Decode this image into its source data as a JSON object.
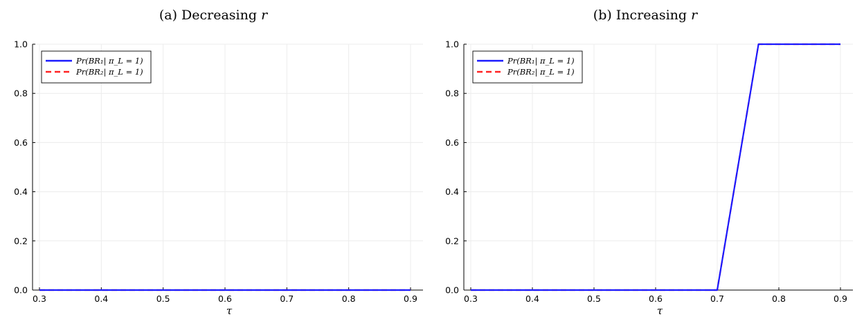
{
  "chart_data": [
    {
      "type": "line",
      "title_prefix": "(a) Decreasing ",
      "title_var": "r",
      "xlabel": "τ",
      "ylabel": "",
      "xlim": [
        0.3,
        0.9
      ],
      "ylim": [
        0.0,
        1.0
      ],
      "xticks": [
        "0.3",
        "0.4",
        "0.5",
        "0.6",
        "0.7",
        "0.8",
        "0.9"
      ],
      "yticks": [
        "0.0",
        "0.2",
        "0.4",
        "0.6",
        "0.8",
        "1.0"
      ],
      "grid": true,
      "legend_position": "top-left",
      "series": [
        {
          "name": "Pr(BR₁| π_L = 1)",
          "color": "#1a1aff",
          "dash": "solid",
          "x": [
            0.3,
            0.9
          ],
          "y": [
            0.0,
            0.0
          ]
        },
        {
          "name": "Pr(BR₂| π_L = 1)",
          "color": "#ff2222",
          "dash": "dashed",
          "x": [
            0.3,
            0.9
          ],
          "y": [
            0.0,
            0.0
          ]
        }
      ]
    },
    {
      "type": "line",
      "title_prefix": "(b) Increasing ",
      "title_var": "r",
      "xlabel": "τ",
      "ylabel": "",
      "xlim": [
        0.3,
        0.9
      ],
      "ylim": [
        0.0,
        1.0
      ],
      "xticks": [
        "0.3",
        "0.4",
        "0.5",
        "0.6",
        "0.7",
        "0.8",
        "0.9"
      ],
      "yticks": [
        "0.0",
        "0.2",
        "0.4",
        "0.6",
        "0.8",
        "1.0"
      ],
      "grid": true,
      "legend_position": "top-left",
      "series": [
        {
          "name": "Pr(BR₁| π_L = 1)",
          "color": "#1a1aff",
          "dash": "solid",
          "x": [
            0.3,
            0.7,
            0.767,
            0.9
          ],
          "y": [
            0.0,
            0.0,
            1.0,
            1.0
          ]
        },
        {
          "name": "Pr(BR₂| π_L = 1)",
          "color": "#ff2222",
          "dash": "dashed",
          "x": [
            0.3,
            0.7,
            0.767,
            0.9
          ],
          "y": [
            0.0,
            0.0,
            1.0,
            1.0
          ]
        }
      ]
    }
  ]
}
